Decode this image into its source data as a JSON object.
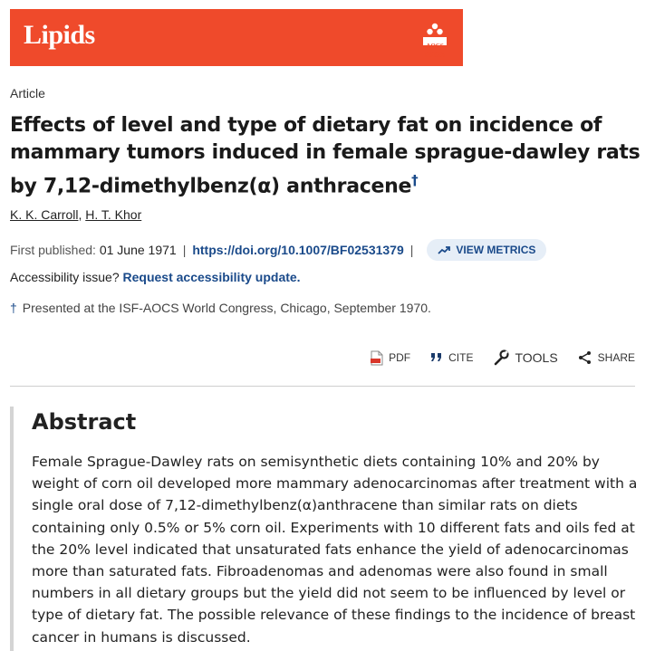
{
  "banner": {
    "journal_logo": "Lipids",
    "publisher_mark": "AOCS PRESS",
    "brand_color": "#ef4a2b"
  },
  "article": {
    "type": "Article",
    "title": "Effects of level and type of dietary fat on incidence of mammary tumors induced in female sprague-dawley rats by 7,12-dimethylbenz(α) anthracene",
    "title_marker": "†",
    "authors": [
      "K. K. Carroll",
      "H. T. Khor"
    ],
    "author_separator": ",",
    "first_published_label": "First published:",
    "first_published_date": "01 June 1971",
    "separator": "|",
    "doi": "https://doi.org/10.1007/BF02531379",
    "view_metrics": "VIEW METRICS",
    "accessibility_label": "Accessibility issue?",
    "accessibility_link": "Request accessibility update.",
    "footnote_marker": "†",
    "footnote": "Presented at the ISF-AOCS World Congress, Chicago, September 1970."
  },
  "toolbar": {
    "pdf": "PDF",
    "cite": "CITE",
    "tools": "TOOLS",
    "share": "SHARE"
  },
  "abstract": {
    "heading": "Abstract",
    "text": "Female Sprague-Dawley rats on semisynthetic diets containing 10% and 20% by weight of corn oil developed more mammary adenocarcinomas after treatment with a single oral dose of 7,12-dimethylbenz(α)anthracene than similar rats on diets containing only 0.5% or 5% corn oil. Experiments with 10 different fats and oils fed at the 20% level indicated that unsaturated fats enhance the yield of adenocarcinomas more than saturated fats. Fibroadenomas and adenomas were also found in small numbers in all dietary groups but the yield did not seem to be influenced by level or type of dietary fat. The possible relevance of these findings to the incidence of breast cancer in humans is discussed."
  }
}
